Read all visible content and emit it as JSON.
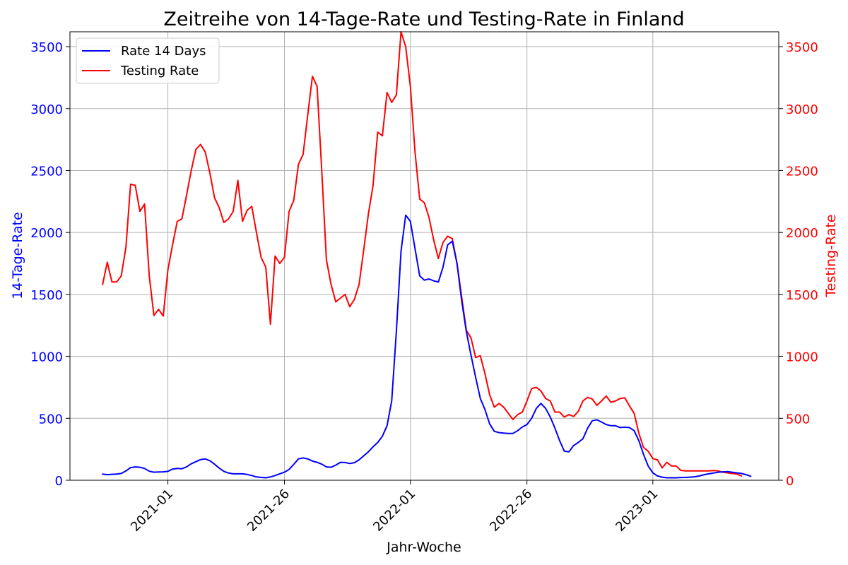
{
  "chart_data": {
    "type": "line",
    "title": "Zeitreihe von 14-Tage-Rate und Testing-Rate in Finland",
    "xlabel": "Jahr-Woche",
    "ylabel_left": "14-Tage-Rate",
    "ylabel_right": "Testing-Rate",
    "x_ticks": [
      "2021-01",
      "2021-26",
      "2022-01",
      "2022-26",
      "2023-01"
    ],
    "x_tick_positions": [
      14,
      39,
      66,
      91,
      118
    ],
    "y_ticks": [
      0,
      500,
      1000,
      1500,
      2000,
      2500,
      3000,
      3500
    ],
    "ylim": [
      0,
      3620
    ],
    "xlim": [
      -7,
      145
    ],
    "grid": true,
    "legend_position": "top-left",
    "series": [
      {
        "name": "Rate 14 Days",
        "axis": "left",
        "color": "#0000ff",
        "values": [
          50,
          45,
          48,
          50,
          55,
          75,
          102,
          108,
          105,
          95,
          73,
          65,
          67,
          68,
          72,
          90,
          95,
          93,
          108,
          133,
          150,
          167,
          172,
          158,
          130,
          98,
          72,
          58,
          52,
          52,
          52,
          47,
          38,
          27,
          23,
          20,
          27,
          38,
          52,
          65,
          87,
          128,
          172,
          180,
          172,
          155,
          145,
          130,
          108,
          105,
          122,
          145,
          143,
          135,
          142,
          165,
          197,
          230,
          270,
          305,
          355,
          440,
          640,
          1200,
          1850,
          2140,
          2090,
          1870,
          1650,
          1615,
          1625,
          1610,
          1600,
          1720,
          1900,
          1930,
          1750,
          1450,
          1200,
          1010,
          830,
          660,
          570,
          455,
          395,
          385,
          380,
          378,
          378,
          400,
          430,
          450,
          500,
          580,
          620,
          580,
          510,
          420,
          320,
          235,
          230,
          280,
          305,
          335,
          420,
          480,
          488,
          470,
          450,
          440,
          440,
          425,
          428,
          425,
          400,
          320,
          210,
          115,
          60,
          35,
          25,
          20,
          20,
          20,
          22,
          23,
          25,
          28,
          35,
          45,
          52,
          58,
          65,
          68,
          70,
          65,
          60,
          55,
          45,
          32
        ]
      },
      {
        "name": "Testing Rate",
        "axis": "right",
        "color": "#ff0000",
        "values": [
          1580,
          1760,
          1600,
          1600,
          1650,
          1880,
          2390,
          2380,
          2170,
          2230,
          1650,
          1330,
          1380,
          1325,
          1700,
          1900,
          2090,
          2110,
          2300,
          2500,
          2670,
          2710,
          2650,
          2480,
          2280,
          2200,
          2080,
          2110,
          2170,
          2420,
          2090,
          2180,
          2210,
          2000,
          1800,
          1720,
          1260,
          1810,
          1750,
          1800,
          2170,
          2260,
          2550,
          2630,
          2950,
          3260,
          3180,
          2500,
          1780,
          1580,
          1440,
          1470,
          1500,
          1400,
          1460,
          1580,
          1860,
          2150,
          2380,
          2810,
          2780,
          3130,
          3050,
          3110,
          3620,
          3500,
          3180,
          2650,
          2270,
          2240,
          2120,
          1940,
          1790,
          1920,
          1970,
          1950,
          1750,
          1480,
          1210,
          1150,
          990,
          1005,
          860,
          690,
          590,
          620,
          590,
          540,
          490,
          530,
          550,
          640,
          740,
          750,
          720,
          660,
          640,
          550,
          550,
          510,
          530,
          515,
          555,
          640,
          670,
          655,
          605,
          640,
          680,
          630,
          640,
          660,
          665,
          600,
          540,
          380,
          265,
          235,
          175,
          165,
          100,
          145,
          115,
          115,
          80,
          75,
          75,
          75,
          75,
          75,
          75,
          78,
          75,
          65,
          60,
          55,
          50,
          35
        ]
      }
    ]
  }
}
